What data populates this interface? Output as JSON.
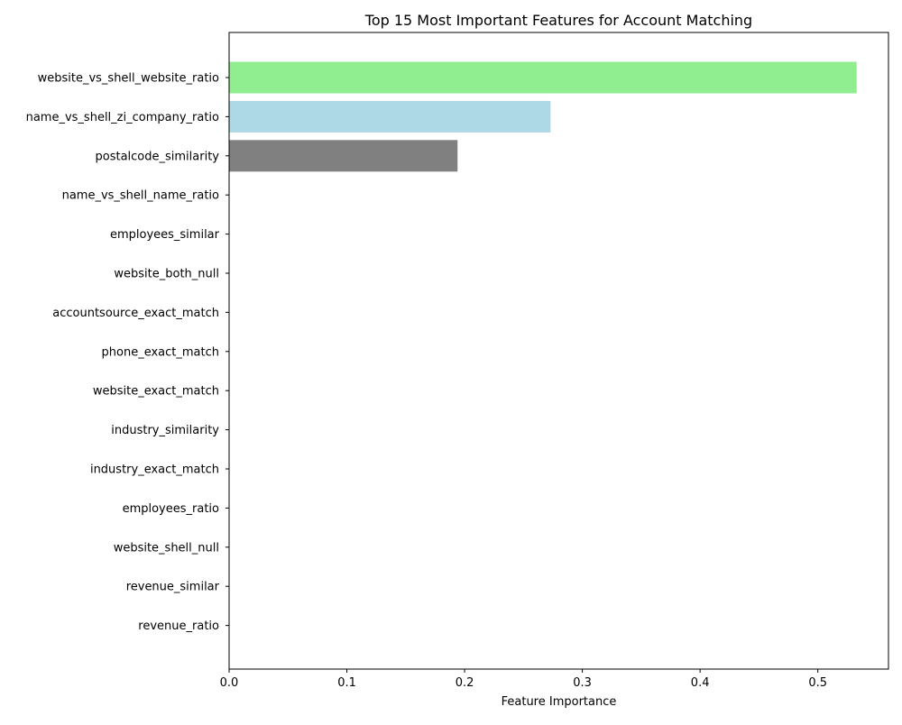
{
  "chart_data": {
    "type": "bar",
    "orientation": "horizontal",
    "title": "Top 15 Most Important Features for Account Matching",
    "xlabel": "Feature Importance",
    "ylabel": "",
    "xlim": [
      0,
      0.56
    ],
    "xticks": [
      0.0,
      0.1,
      0.2,
      0.3,
      0.4,
      0.5
    ],
    "xtick_labels": [
      "0.0",
      "0.1",
      "0.2",
      "0.3",
      "0.4",
      "0.5"
    ],
    "grid": false,
    "legend": "none",
    "categories": [
      "website_vs_shell_website_ratio",
      "name_vs_shell_zi_company_ratio",
      "postalcode_similarity",
      "name_vs_shell_name_ratio",
      "employees_similar",
      "website_both_null",
      "accountsource_exact_match",
      "phone_exact_match",
      "website_exact_match",
      "industry_similarity",
      "industry_exact_match",
      "employees_ratio",
      "website_shell_null",
      "revenue_similar",
      "revenue_ratio"
    ],
    "values": [
      0.533,
      0.273,
      0.194,
      0,
      0,
      0,
      0,
      0,
      0,
      0,
      0,
      0,
      0,
      0,
      0
    ],
    "colors": [
      "#90ee90",
      "#add8e6",
      "#808080",
      "#808080",
      "#808080",
      "#808080",
      "#808080",
      "#808080",
      "#808080",
      "#808080",
      "#808080",
      "#808080",
      "#808080",
      "#808080",
      "#808080"
    ]
  }
}
